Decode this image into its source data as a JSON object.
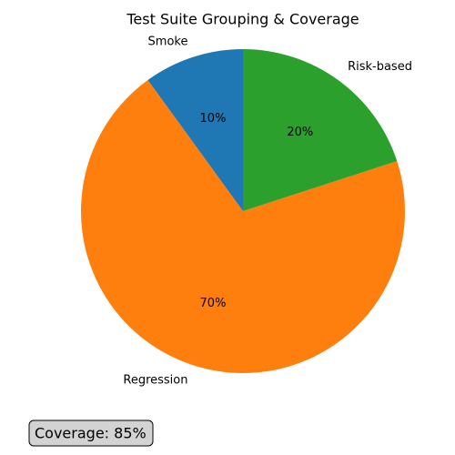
{
  "chart_data": {
    "type": "pie",
    "title": "Test Suite Grouping & Coverage",
    "categories": [
      "Smoke",
      "Regression",
      "Risk-based"
    ],
    "values": [
      10,
      70,
      20
    ],
    "value_labels": [
      "10%",
      "70%",
      "20%"
    ],
    "colors": [
      "#1f77b4",
      "#ff7f0e",
      "#2ca02c"
    ],
    "start_angle": 90,
    "annotation": "Coverage: 85%"
  }
}
